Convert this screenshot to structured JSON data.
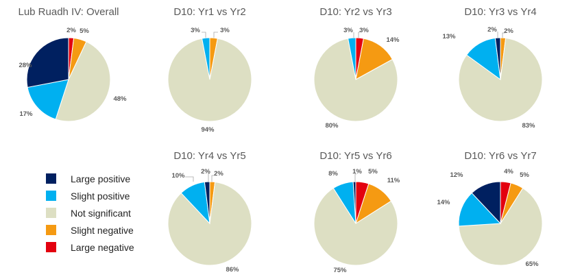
{
  "colors": {
    "large_positive": "#002060",
    "slight_positive": "#00b0f0",
    "not_significant": "#dddfc3",
    "slight_negative": "#f59a12",
    "large_negative": "#e3010f"
  },
  "legend": {
    "items": [
      {
        "key": "large_positive",
        "label": "Large positive"
      },
      {
        "key": "slight_positive",
        "label": "Slight positive"
      },
      {
        "key": "not_significant",
        "label": "Not significant"
      },
      {
        "key": "slight_negative",
        "label": "Slight negative"
      },
      {
        "key": "large_negative",
        "label": "Large negative"
      }
    ]
  },
  "chart_data": [
    {
      "type": "pie",
      "title": "Lub Ruadh IV: Overall",
      "slices": [
        {
          "key": "large_negative",
          "value": 2,
          "label": "2%"
        },
        {
          "key": "slight_negative",
          "value": 5,
          "label": "5%"
        },
        {
          "key": "not_significant",
          "value": 48,
          "label": "48%"
        },
        {
          "key": "slight_positive",
          "value": 17,
          "label": "17%"
        },
        {
          "key": "large_positive",
          "value": 28,
          "label": "28%"
        }
      ]
    },
    {
      "type": "pie",
      "title": "D10: Yr1 vs Yr2",
      "slices": [
        {
          "key": "slight_negative",
          "value": 3,
          "label": "3%"
        },
        {
          "key": "not_significant",
          "value": 94,
          "label": "94%"
        },
        {
          "key": "slight_positive",
          "value": 3,
          "label": "3%"
        }
      ]
    },
    {
      "type": "pie",
      "title": "D10: Yr2 vs Yr3",
      "slices": [
        {
          "key": "large_negative",
          "value": 3,
          "label": "3%"
        },
        {
          "key": "slight_negative",
          "value": 14,
          "label": "14%"
        },
        {
          "key": "not_significant",
          "value": 80,
          "label": "80%"
        },
        {
          "key": "slight_positive",
          "value": 3,
          "label": "3%"
        }
      ]
    },
    {
      "type": "pie",
      "title": "D10: Yr3 vs Yr4",
      "slices": [
        {
          "key": "slight_negative",
          "value": 2,
          "label": "2%"
        },
        {
          "key": "not_significant",
          "value": 83,
          "label": "83%"
        },
        {
          "key": "slight_positive",
          "value": 13,
          "label": "13%"
        },
        {
          "key": "large_positive",
          "value": 2,
          "label": "2%"
        }
      ]
    },
    {
      "type": "pie",
      "title": "D10: Yr4 vs Yr5",
      "slices": [
        {
          "key": "slight_negative",
          "value": 2,
          "label": "2%"
        },
        {
          "key": "not_significant",
          "value": 86,
          "label": "86%"
        },
        {
          "key": "slight_positive",
          "value": 10,
          "label": "10%"
        },
        {
          "key": "large_positive",
          "value": 2,
          "label": "2%"
        }
      ]
    },
    {
      "type": "pie",
      "title": "D10: Yr5 vs Yr6",
      "slices": [
        {
          "key": "large_negative",
          "value": 5,
          "label": "5%"
        },
        {
          "key": "slight_negative",
          "value": 11,
          "label": "11%"
        },
        {
          "key": "not_significant",
          "value": 75,
          "label": "75%"
        },
        {
          "key": "slight_positive",
          "value": 8,
          "label": "8%"
        },
        {
          "key": "large_positive",
          "value": 1,
          "label": "1%"
        }
      ]
    },
    {
      "type": "pie",
      "title": "D10: Yr6 vs Yr7",
      "slices": [
        {
          "key": "large_negative",
          "value": 4,
          "label": "4%"
        },
        {
          "key": "slight_negative",
          "value": 5,
          "label": "5%"
        },
        {
          "key": "not_significant",
          "value": 65,
          "label": "65%"
        },
        {
          "key": "slight_positive",
          "value": 14,
          "label": "14%"
        },
        {
          "key": "large_positive",
          "value": 12,
          "label": "12%"
        }
      ]
    }
  ]
}
